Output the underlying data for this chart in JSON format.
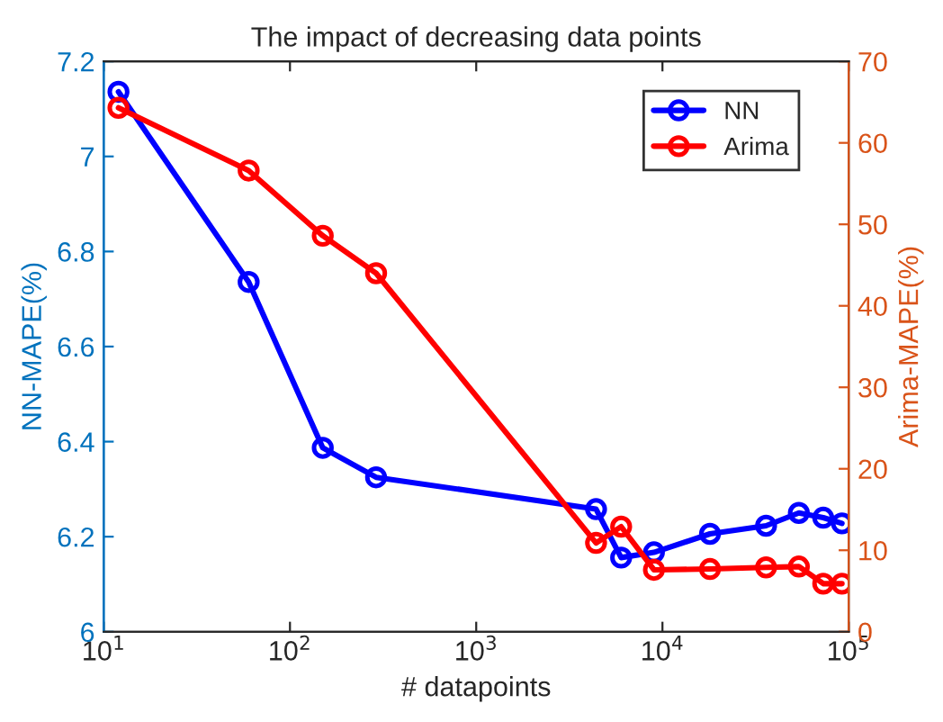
{
  "chart_data": {
    "type": "line",
    "title": "The impact of decreasing data points",
    "xlabel": "# datapoints",
    "ylabel": "NN-MAPE(%)",
    "y2label": "Arima-MAPE(%)",
    "x": [
      12,
      60,
      150,
      290,
      4400,
      6000,
      9000,
      18000,
      36000,
      54000,
      73000,
      92000
    ],
    "series": [
      {
        "name": "NN",
        "color": "#0000ff",
        "values": [
          7.136,
          6.736,
          6.387,
          6.325,
          6.258,
          6.156,
          6.167,
          6.206,
          6.223,
          6.25,
          6.24,
          6.228
        ]
      },
      {
        "name": "Arima",
        "color": "#ff0000",
        "axis": "y2",
        "values": [
          64.3,
          56.6,
          48.6,
          44.0,
          10.9,
          12.9,
          7.6,
          7.7,
          7.9,
          8.0,
          5.9,
          5.9
        ]
      }
    ],
    "log": "x",
    "xlim": [
      10,
      100000
    ],
    "xticks": [
      {
        "value": 10,
        "label": "10$^{1}$"
      },
      {
        "value": 100,
        "label": "10$^{2}$"
      },
      {
        "value": 1000,
        "label": "10$^{3}$"
      },
      {
        "value": 10000,
        "label": "10$^{4}$"
      },
      {
        "value": 100000,
        "label": "10$^{5}$"
      }
    ],
    "ylim": [
      6,
      7.2
    ],
    "yticks": [
      6,
      6.2,
      6.4,
      6.6,
      6.8,
      7,
      7.2
    ],
    "y2lim": [
      0,
      70
    ],
    "y2ticks": [
      0,
      10,
      20,
      30,
      40,
      50,
      60,
      70
    ],
    "marker": "circle",
    "line_style": "solid",
    "legend": "top right",
    "grid": false
  }
}
